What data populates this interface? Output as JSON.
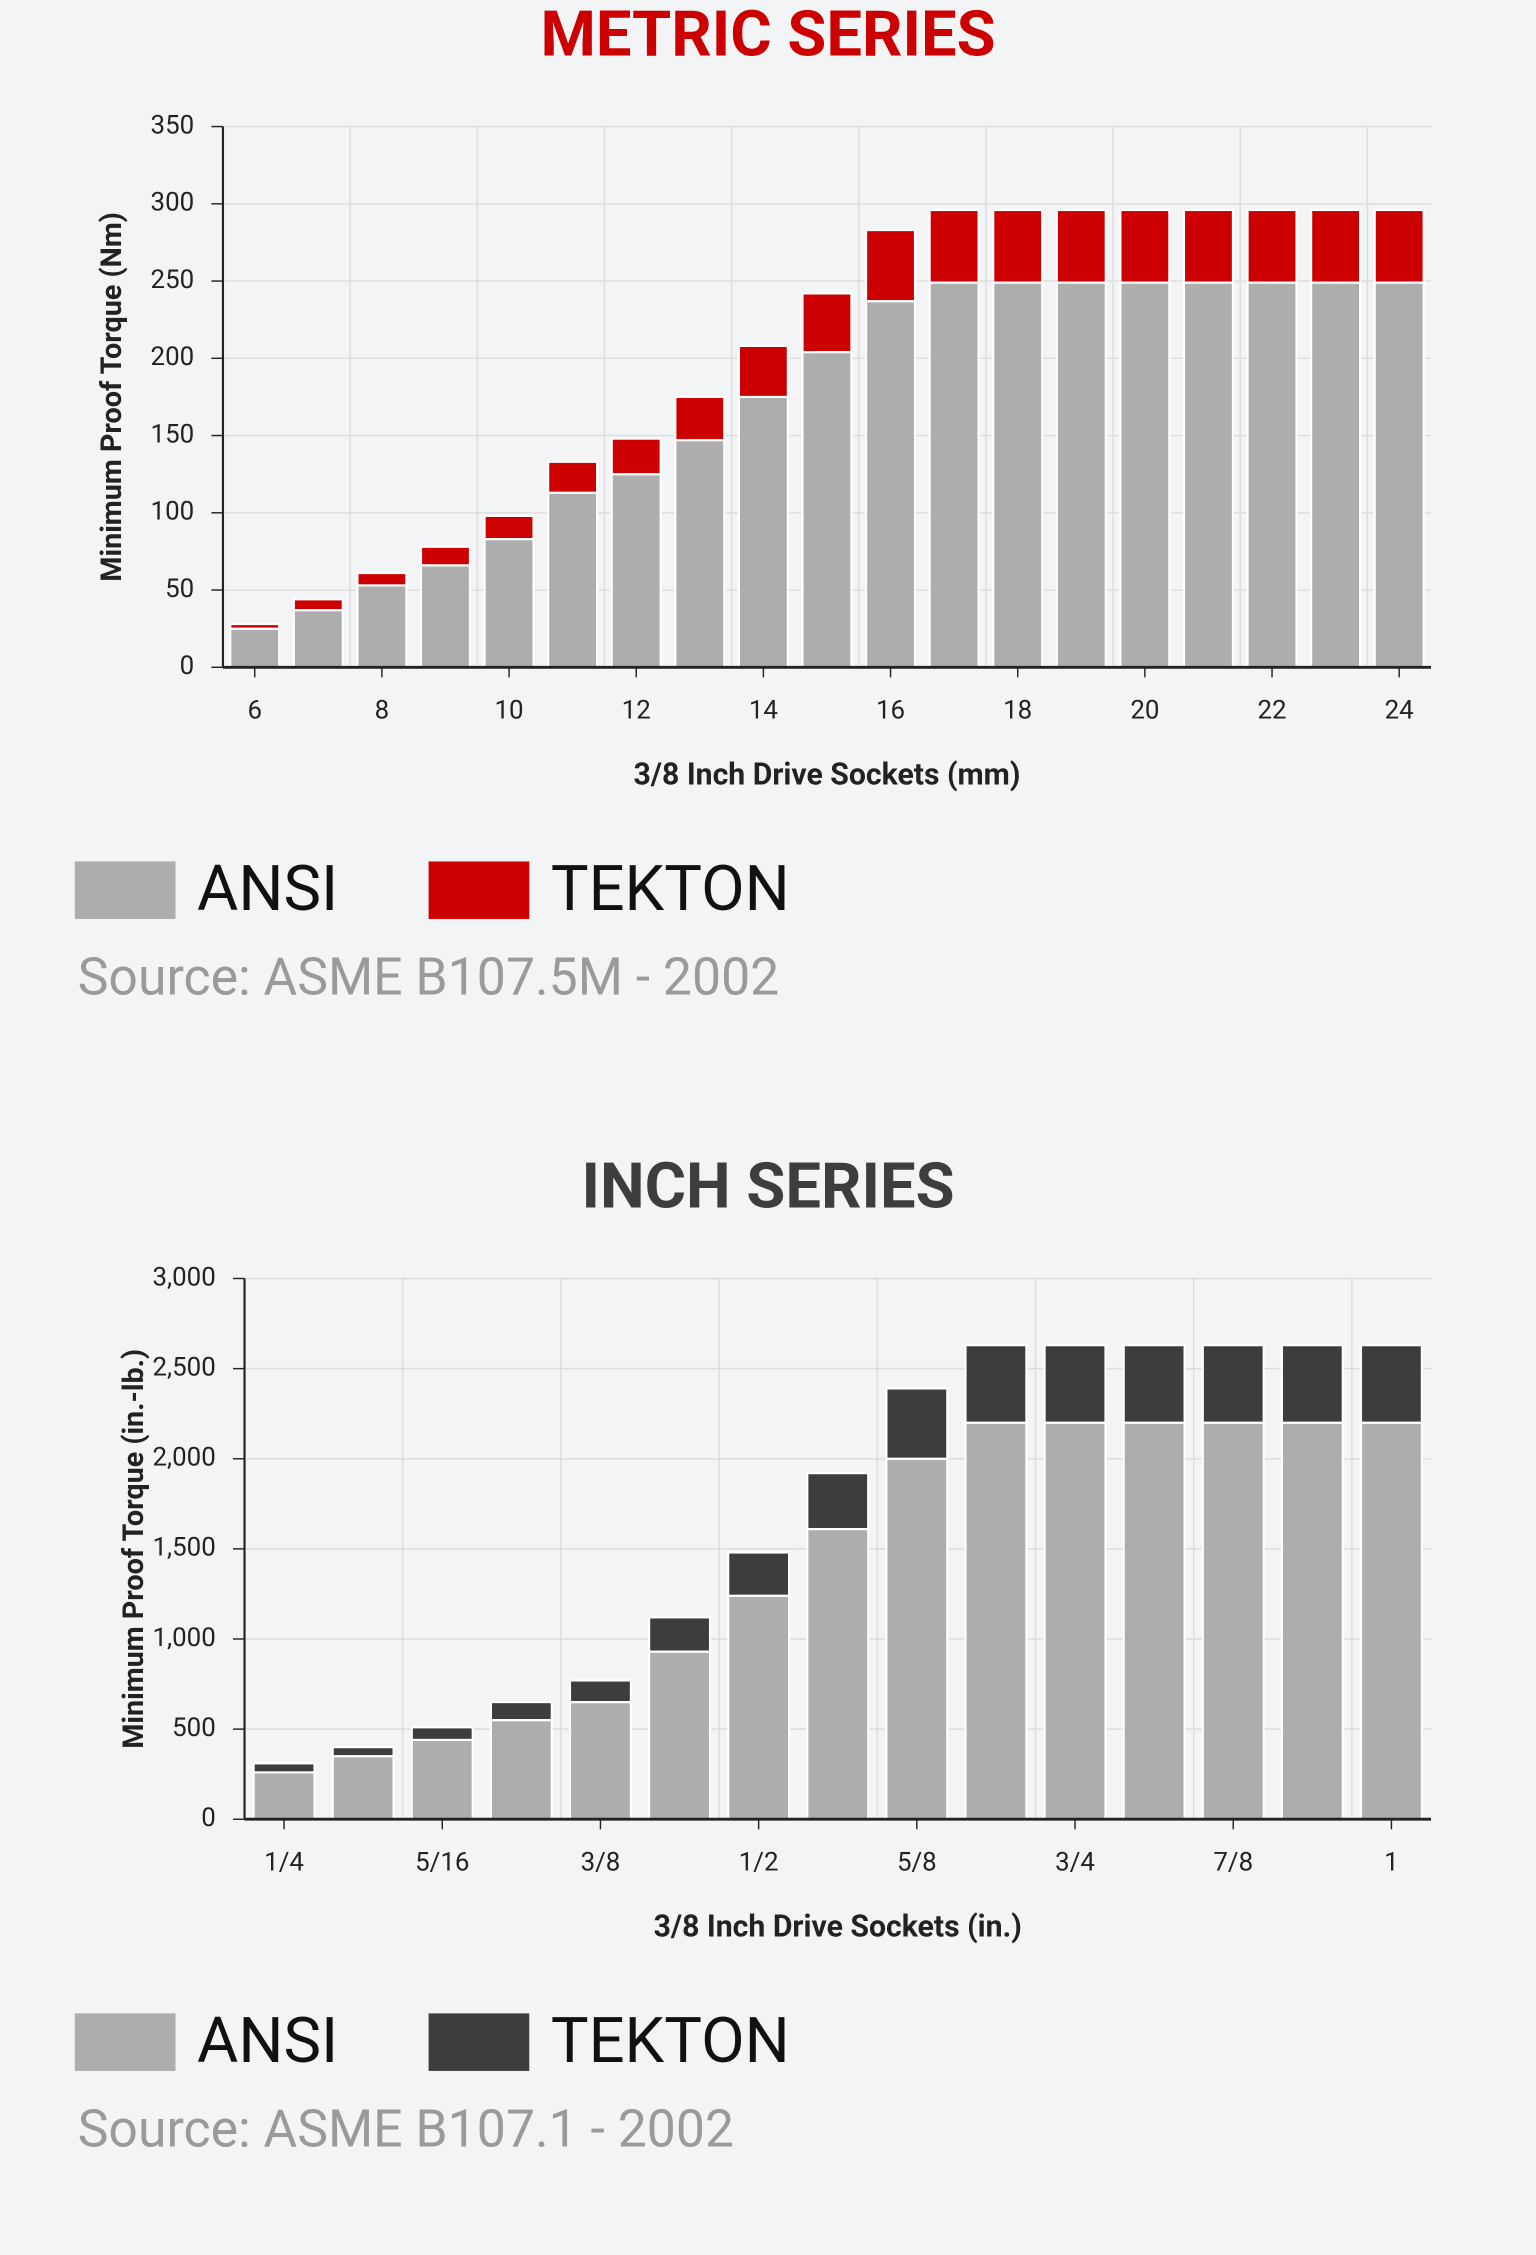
{
  "chart_data": [
    {
      "type": "bar",
      "stacked": true,
      "title": "METRIC SERIES",
      "title_color": "#cc0000",
      "x_label": "3/8 Inch Drive Sockets (mm)",
      "y_label": "Minimum Proof Torque (Nm)",
      "categories": [
        "6",
        null,
        "8",
        null,
        "10",
        null,
        "12",
        null,
        "14",
        null,
        "16",
        null,
        "18",
        null,
        "20",
        null,
        "22",
        null,
        "24"
      ],
      "series": [
        {
          "name": "ANSI",
          "color": "#adadad",
          "values": [
            25,
            37,
            53,
            66,
            83,
            113,
            125,
            147,
            175,
            204,
            237,
            249,
            249,
            249,
            249,
            249,
            249,
            249,
            249
          ]
        },
        {
          "name": "TEKTON",
          "color": "#cc0000",
          "values": [
            3,
            7,
            8,
            12,
            15,
            20,
            23,
            28,
            33,
            38,
            46,
            47,
            47,
            47,
            47,
            47,
            47,
            47,
            47
          ]
        }
      ],
      "ylim": [
        0,
        350
      ],
      "yticks": [
        0,
        50,
        100,
        150,
        200,
        250,
        300,
        350
      ],
      "grid": true,
      "source": "Source: ASME B107.5M - 2002"
    },
    {
      "type": "bar",
      "stacked": true,
      "title": "INCH SERIES",
      "title_color": "#3d3d3d",
      "x_label": "3/8 Inch Drive Sockets (in.)",
      "y_label": "Minimum Proof Torque (in.-lb.)",
      "categories": [
        "1/4",
        null,
        "5/16",
        null,
        "3/8",
        null,
        "1/2",
        null,
        "5/8",
        null,
        "3/4",
        null,
        "7/8",
        null,
        "1"
      ],
      "series": [
        {
          "name": "ANSI",
          "color": "#adadad",
          "values": [
            260,
            350,
            440,
            550,
            650,
            930,
            1240,
            1610,
            2000,
            2200,
            2200,
            2200,
            2200,
            2200,
            2200
          ]
        },
        {
          "name": "TEKTON",
          "color": "#3d3d3d",
          "values": [
            50,
            50,
            70,
            100,
            120,
            190,
            240,
            310,
            390,
            430,
            430,
            430,
            430,
            430,
            430
          ]
        }
      ],
      "ylim": [
        0,
        3000
      ],
      "yticks": [
        0,
        500,
        {
          "value": 1000,
          "label": "1,000"
        },
        {
          "value": 1500,
          "label": "1,500"
        },
        {
          "value": 2000,
          "label": "2,000"
        },
        {
          "value": 2500,
          "label": "2,500"
        },
        {
          "value": 3000,
          "label": "3,000"
        }
      ],
      "grid": true,
      "source": "Source: ASME B107.1 - 2002"
    }
  ]
}
